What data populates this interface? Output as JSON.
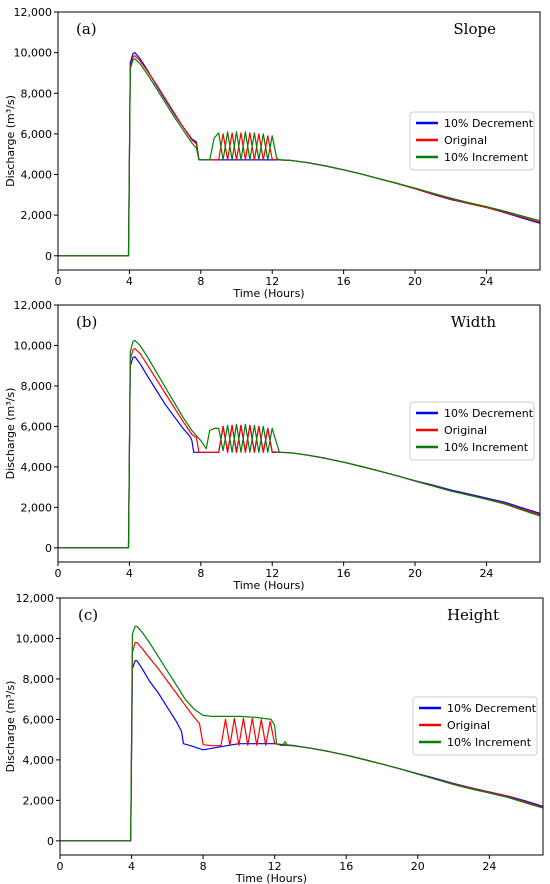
{
  "chart_data": [
    {
      "type": "line",
      "panel_label": "(a)",
      "title": "Slope",
      "xlabel": "Time (Hours)",
      "ylabel": "Discharge (m³/s)",
      "xlim": [
        0,
        27
      ],
      "ylim": [
        -700,
        12000
      ],
      "xticks": [
        0,
        4,
        8,
        12,
        16,
        20,
        24
      ],
      "yticks": [
        0,
        2000,
        4000,
        6000,
        8000,
        10000,
        12000
      ],
      "ytick_labels": [
        "0",
        "2,000",
        "4,000",
        "6,000",
        "8,000",
        "10,000",
        "12,000"
      ],
      "grid": false,
      "legend_position": "right",
      "series": [
        {
          "name": "10% Decrement",
          "color": "#0000ff",
          "x": [
            0,
            3.95,
            4.05,
            4.2,
            4.3,
            4.6,
            5.0,
            5.5,
            6.0,
            6.5,
            7.0,
            7.5,
            7.75,
            7.9,
            8.5,
            9.0,
            9.5,
            10.0,
            10.5,
            11.0,
            11.5,
            12.0,
            12.4,
            13,
            14,
            15,
            16,
            17,
            18,
            19,
            20,
            21,
            22,
            23,
            24,
            25,
            26,
            27
          ],
          "y": [
            0,
            0,
            9500,
            9950,
            10000,
            9700,
            9150,
            8400,
            7700,
            7000,
            6350,
            5750,
            5600,
            4720,
            4720,
            4720,
            4720,
            4720,
            4720,
            4720,
            4720,
            4720,
            4720,
            4700,
            4580,
            4420,
            4230,
            4020,
            3790,
            3560,
            3300,
            3020,
            2770,
            2570,
            2380,
            2130,
            1860,
            1600
          ]
        },
        {
          "name": "Original",
          "color": "#ff0000",
          "x": [
            0,
            3.95,
            4.05,
            4.2,
            4.3,
            4.6,
            5.0,
            5.5,
            6.0,
            6.5,
            7.0,
            7.5,
            7.75,
            7.9,
            8.5,
            9.0,
            9.25,
            9.5,
            9.75,
            10.0,
            10.25,
            10.5,
            10.75,
            11.0,
            11.25,
            11.5,
            11.75,
            12.0,
            12.4,
            13,
            14,
            15,
            16,
            17,
            18,
            19,
            20,
            21,
            22,
            23,
            24,
            25,
            26,
            27
          ],
          "y": [
            0,
            0,
            9300,
            9800,
            9850,
            9600,
            9100,
            8450,
            7750,
            7050,
            6350,
            5700,
            5500,
            4720,
            4720,
            4720,
            6000,
            4720,
            6050,
            4720,
            6050,
            4720,
            6050,
            4720,
            6000,
            4720,
            5900,
            4750,
            4720,
            4700,
            4580,
            4420,
            4230,
            4020,
            3790,
            3560,
            3300,
            3040,
            2790,
            2580,
            2370,
            2150,
            1900,
            1650
          ]
        },
        {
          "name": "10% Increment",
          "color": "#008000",
          "x": [
            0,
            3.95,
            4.05,
            4.2,
            4.3,
            4.6,
            5.0,
            5.5,
            6.0,
            6.5,
            7.0,
            7.5,
            7.75,
            7.9,
            8.5,
            8.75,
            9.0,
            9.25,
            9.5,
            9.75,
            10.0,
            10.25,
            10.5,
            10.75,
            11.0,
            11.25,
            11.5,
            11.75,
            12.0,
            12.25,
            12.4,
            13,
            14,
            15,
            16,
            17,
            18,
            19,
            20,
            21,
            22,
            23,
            24,
            25,
            26,
            27
          ],
          "y": [
            0,
            0,
            9200,
            9650,
            9700,
            9450,
            8950,
            8250,
            7550,
            6850,
            6200,
            5550,
            5300,
            4720,
            4720,
            5800,
            6050,
            4720,
            6100,
            4720,
            6100,
            4720,
            6100,
            4720,
            6050,
            4720,
            6000,
            4720,
            5900,
            4800,
            4720,
            4700,
            4580,
            4420,
            4230,
            4020,
            3790,
            3570,
            3330,
            3080,
            2840,
            2620,
            2420,
            2200,
            1960,
            1720
          ]
        }
      ]
    },
    {
      "type": "line",
      "panel_label": "(b)",
      "title": "Width",
      "xlabel": "Time (Hours)",
      "ylabel": "Discharge (m³/s)",
      "xlim": [
        0,
        27
      ],
      "ylim": [
        -700,
        12000
      ],
      "xticks": [
        0,
        4,
        8,
        12,
        16,
        20,
        24
      ],
      "yticks": [
        0,
        2000,
        4000,
        6000,
        8000,
        10000,
        12000
      ],
      "ytick_labels": [
        "0",
        "2,000",
        "4,000",
        "6,000",
        "8,000",
        "10,000",
        "12,000"
      ],
      "grid": false,
      "legend_position": "right",
      "series": [
        {
          "name": "10% Decrement",
          "color": "#0000ff",
          "x": [
            0,
            3.95,
            4.05,
            4.2,
            4.3,
            4.6,
            5.0,
            5.5,
            6.0,
            6.5,
            7.0,
            7.4,
            7.5,
            7.6,
            8.5,
            9.0,
            9.25,
            9.5,
            9.75,
            10.0,
            10.25,
            10.5,
            10.75,
            11.0,
            11.25,
            11.5,
            11.75,
            12.0,
            12.4,
            13,
            14,
            15,
            16,
            17,
            18,
            19,
            20,
            21,
            22,
            23,
            24,
            25,
            26,
            27
          ],
          "y": [
            0,
            0,
            9000,
            9400,
            9450,
            9100,
            8500,
            7800,
            7100,
            6500,
            5900,
            5500,
            5300,
            4720,
            4720,
            4720,
            6000,
            4720,
            6050,
            4720,
            6050,
            4720,
            6050,
            4720,
            6000,
            4720,
            5900,
            4720,
            4720,
            4700,
            4580,
            4420,
            4230,
            4020,
            3790,
            3560,
            3320,
            3100,
            2860,
            2660,
            2460,
            2260,
            1980,
            1700
          ]
        },
        {
          "name": "Original",
          "color": "#ff0000",
          "x": [
            0,
            3.95,
            4.05,
            4.2,
            4.3,
            4.6,
            5.0,
            5.5,
            6.0,
            6.5,
            7.0,
            7.5,
            7.75,
            7.9,
            8.5,
            9.0,
            9.25,
            9.5,
            9.75,
            10.0,
            10.25,
            10.5,
            10.75,
            11.0,
            11.25,
            11.5,
            11.75,
            12.0,
            12.4,
            13,
            14,
            15,
            16,
            17,
            18,
            19,
            20,
            21,
            22,
            23,
            24,
            25,
            26,
            27
          ],
          "y": [
            0,
            0,
            9300,
            9800,
            9850,
            9600,
            9050,
            8350,
            7650,
            6950,
            6250,
            5600,
            5450,
            4720,
            4720,
            4720,
            6000,
            4720,
            6050,
            4720,
            6050,
            4720,
            6050,
            4720,
            6000,
            4720,
            5900,
            4750,
            4720,
            4700,
            4580,
            4420,
            4230,
            4020,
            3790,
            3560,
            3310,
            3070,
            2820,
            2620,
            2420,
            2200,
            1920,
            1640
          ]
        },
        {
          "name": "10% Increment",
          "color": "#008000",
          "x": [
            0,
            3.95,
            4.05,
            4.2,
            4.3,
            4.6,
            5.0,
            5.5,
            6.0,
            6.5,
            7.0,
            7.5,
            8.0,
            8.3,
            8.5,
            8.75,
            9.0,
            9.25,
            9.5,
            9.75,
            10.0,
            10.25,
            10.5,
            10.75,
            11.0,
            11.25,
            11.5,
            11.75,
            12.0,
            12.4,
            13,
            14,
            15,
            16,
            17,
            18,
            19,
            20,
            21,
            22,
            23,
            24,
            25,
            26,
            27
          ],
          "y": [
            0,
            0,
            9700,
            10200,
            10250,
            10000,
            9450,
            8700,
            7950,
            7200,
            6450,
            5800,
            5300,
            4900,
            5800,
            5900,
            5900,
            4800,
            6050,
            4720,
            6100,
            4720,
            6100,
            4720,
            6050,
            4720,
            6000,
            4720,
            5900,
            4720,
            4700,
            4580,
            4420,
            4230,
            4020,
            3790,
            3560,
            3300,
            3050,
            2810,
            2600,
            2400,
            2170,
            1870,
            1580
          ]
        }
      ]
    },
    {
      "type": "line",
      "panel_label": "(c)",
      "title": "Height",
      "xlabel": "Time (Hours)",
      "ylabel": "Discharge (m³/s)",
      "xlim": [
        0,
        27
      ],
      "ylim": [
        -700,
        12000
      ],
      "xticks": [
        0,
        4,
        8,
        12,
        16,
        20,
        24
      ],
      "yticks": [
        0,
        2000,
        4000,
        6000,
        8000,
        10000,
        12000
      ],
      "ytick_labels": [
        "0",
        "2,000",
        "4,000",
        "6,000",
        "8,000",
        "10,000",
        "12,000"
      ],
      "grid": false,
      "legend_position": "right",
      "series": [
        {
          "name": "10% Decrement",
          "color": "#0000ff",
          "x": [
            0,
            3.95,
            4.05,
            4.2,
            4.3,
            4.6,
            5.0,
            5.5,
            6.0,
            6.5,
            6.8,
            6.9,
            7.3,
            8.0,
            9.0,
            10.0,
            11.0,
            12.0,
            12.5,
            13,
            14,
            15,
            16,
            17,
            18,
            19,
            20,
            21,
            22,
            23,
            24,
            25,
            26,
            27
          ],
          "y": [
            0,
            0,
            8500,
            8900,
            8900,
            8500,
            7900,
            7300,
            6600,
            5900,
            5400,
            4800,
            4700,
            4500,
            4650,
            4800,
            4800,
            4800,
            4750,
            4720,
            4580,
            4420,
            4230,
            4020,
            3790,
            3560,
            3320,
            3080,
            2840,
            2620,
            2420,
            2220,
            1980,
            1700
          ]
        },
        {
          "name": "Original",
          "color": "#ff0000",
          "x": [
            0,
            3.95,
            4.05,
            4.2,
            4.3,
            4.6,
            5.0,
            5.5,
            6.0,
            6.5,
            7.0,
            7.5,
            7.8,
            8.0,
            8.5,
            9.0,
            9.25,
            9.5,
            9.75,
            10.0,
            10.25,
            10.5,
            10.75,
            11.0,
            11.25,
            11.5,
            11.75,
            12.0,
            12.4,
            13,
            14,
            15,
            16,
            17,
            18,
            19,
            20,
            21,
            22,
            23,
            24,
            25,
            26,
            27
          ],
          "y": [
            0,
            0,
            9300,
            9800,
            9800,
            9500,
            9050,
            8500,
            7900,
            7300,
            6700,
            6100,
            5800,
            4750,
            4700,
            4700,
            6000,
            4720,
            6050,
            4720,
            6050,
            4720,
            6050,
            4720,
            6000,
            4720,
            5900,
            4800,
            4720,
            4700,
            4580,
            4420,
            4230,
            4020,
            3790,
            3560,
            3300,
            3050,
            2810,
            2600,
            2400,
            2190,
            1920,
            1660
          ]
        },
        {
          "name": "10% Increment",
          "color": "#008000",
          "x": [
            0,
            3.95,
            4.05,
            4.2,
            4.3,
            4.6,
            5.0,
            5.5,
            6.0,
            6.5,
            7.0,
            7.5,
            8.0,
            8.5,
            9.0,
            10.0,
            11.0,
            11.8,
            12.0,
            12.1,
            12.4,
            12.6,
            12.7,
            13,
            14,
            15,
            16,
            17,
            18,
            19,
            20,
            21,
            22,
            23,
            24,
            25,
            26,
            27
          ],
          "y": [
            0,
            0,
            10200,
            10600,
            10600,
            10300,
            9800,
            9100,
            8400,
            7700,
            7000,
            6500,
            6200,
            6150,
            6150,
            6150,
            6100,
            6000,
            5700,
            4800,
            4700,
            4900,
            4720,
            4700,
            4580,
            4420,
            4230,
            4020,
            3790,
            3560,
            3300,
            3040,
            2780,
            2560,
            2360,
            2150,
            1880,
            1620
          ]
        }
      ]
    }
  ]
}
